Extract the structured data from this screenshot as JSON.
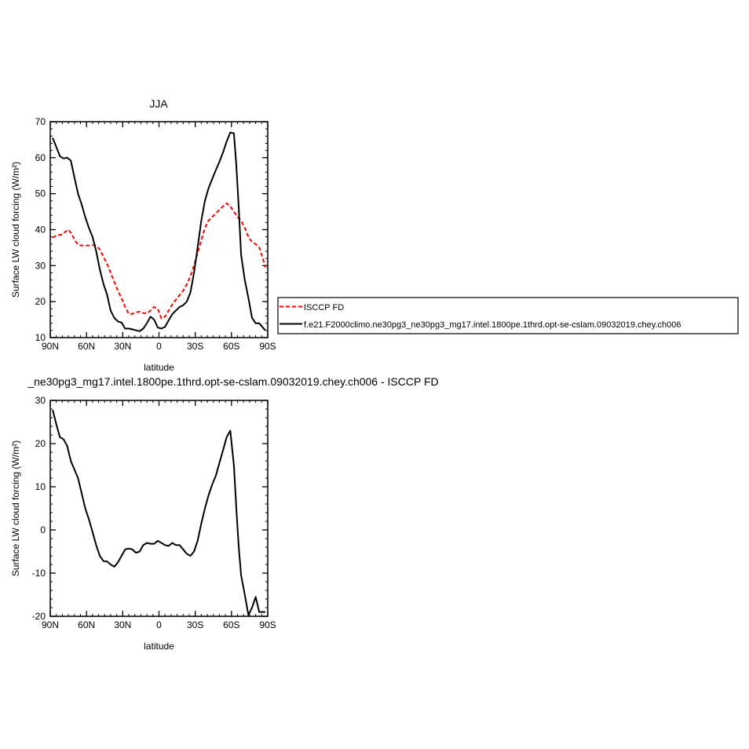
{
  "colors": {
    "obs": "#ff0000",
    "model": "#000000",
    "axis": "#000000"
  },
  "top_panel": {
    "title": "JJA",
    "legend": {
      "entries": [
        "ISCCP FD",
        "f.e21.F2000climo.ne30pg3_ne30pg3_mg17.intel.1800pe.1thrd.opt-se-cslam.09032019.chey.ch006"
      ]
    }
  },
  "bottom_panel": {
    "title": "_ne30pg3_mg17.intel.1800pe.1thrd.opt-se-cslam.09032019.chey.ch006 - ISCCP FD"
  },
  "chart_data": [
    {
      "type": "line",
      "title": "JJA",
      "xlabel": "latitude",
      "ylabel": "Surface LW cloud forcing (W/m²)",
      "xlim": [
        -90,
        90
      ],
      "ylim": [
        10,
        70
      ],
      "xticks": [
        {
          "value": -90,
          "label": "90N"
        },
        {
          "value": -60,
          "label": "60N"
        },
        {
          "value": -30,
          "label": "30N"
        },
        {
          "value": 0,
          "label": "0"
        },
        {
          "value": 30,
          "label": "30S"
        },
        {
          "value": 60,
          "label": "60S"
        },
        {
          "value": 90,
          "label": "90S"
        }
      ],
      "yticks": [
        10,
        20,
        30,
        40,
        50,
        60,
        70
      ],
      "legend_position": "right",
      "series": [
        {
          "name": "ISCCP FD",
          "color": "#ff0000",
          "dash": true,
          "x": [
            -88,
            -85,
            -83,
            -81,
            -78,
            -75,
            -72,
            -70,
            -67,
            -64,
            -61,
            -58,
            -55,
            -52,
            -49,
            -46,
            -43,
            -40,
            -37,
            -34,
            -31,
            -28,
            -25,
            -22,
            -19,
            -16,
            -13,
            -10,
            -7,
            -4,
            -1,
            2,
            5,
            8,
            11,
            14,
            17,
            20,
            23,
            26,
            29,
            32,
            35,
            38,
            41,
            44,
            47,
            50,
            53,
            56,
            59,
            62,
            65,
            68,
            71,
            74,
            77,
            80,
            83,
            86,
            88
          ],
          "y": [
            37.7,
            38.4,
            38.5,
            38.6,
            39.3,
            40.0,
            38.7,
            37.2,
            35.8,
            35.6,
            35.6,
            35.6,
            35.7,
            35.5,
            34.5,
            32.5,
            30.5,
            28.0,
            25.5,
            23.0,
            21.0,
            18.5,
            16.6,
            16.6,
            17.0,
            17.2,
            16.8,
            16.7,
            17.5,
            18.5,
            18.0,
            15.3,
            15.8,
            17.5,
            19.2,
            20.5,
            21.8,
            23.0,
            24.8,
            27.0,
            30.0,
            33.5,
            37.0,
            40.5,
            42.5,
            43.5,
            44.5,
            45.5,
            46.5,
            47.3,
            46.5,
            45.0,
            43.5,
            42.5,
            40.5,
            38.0,
            36.5,
            36.0,
            35.0,
            32.0,
            29.5
          ]
        },
        {
          "name": "f.e21.F2000climo.ne30pg3_ne30pg3_mg17.intel.1800pe.1thrd.opt-se-cslam.09032019.chey.ch006",
          "color": "#000000",
          "dash": false,
          "x": [
            -88,
            -85,
            -82,
            -79,
            -76,
            -73,
            -70,
            -67,
            -64,
            -61,
            -58,
            -55,
            -52,
            -49,
            -46,
            -43,
            -40,
            -37,
            -34,
            -31,
            -28,
            -25,
            -22,
            -19,
            -16,
            -13,
            -10,
            -7,
            -4,
            -1,
            2,
            5,
            8,
            11,
            14,
            17,
            20,
            23,
            26,
            29,
            32,
            35,
            38,
            41,
            44,
            47,
            50,
            53,
            56,
            59,
            62,
            64,
            66,
            68,
            71,
            74,
            77,
            80,
            83,
            86,
            88
          ],
          "y": [
            65.5,
            63.0,
            60.4,
            59.8,
            60.0,
            59.2,
            54.5,
            50.0,
            47.0,
            43.5,
            40.5,
            38.0,
            34.0,
            29.0,
            25.0,
            22.0,
            17.5,
            15.5,
            14.5,
            14.2,
            12.5,
            12.5,
            12.3,
            12.0,
            11.8,
            12.5,
            14.0,
            15.8,
            15.0,
            12.8,
            12.5,
            13.0,
            14.8,
            16.5,
            17.5,
            18.5,
            19.0,
            20.0,
            22.5,
            28.0,
            35.0,
            42.5,
            48.0,
            51.5,
            54.0,
            56.5,
            58.8,
            61.5,
            64.5,
            67.0,
            66.8,
            58.0,
            46.0,
            33.0,
            26.0,
            21.0,
            15.5,
            14.0,
            14.0,
            12.8,
            12.0
          ]
        }
      ]
    },
    {
      "type": "line",
      "title": "_ne30pg3_mg17.intel.1800pe.1thrd.opt-se-cslam.09032019.chey.ch006 - ISCCP FD",
      "xlabel": "latitude",
      "ylabel": "Surface LW cloud forcing (W/m²)",
      "xlim": [
        -90,
        90
      ],
      "ylim": [
        -20,
        30
      ],
      "xticks": [
        {
          "value": -90,
          "label": "90N"
        },
        {
          "value": -60,
          "label": "60N"
        },
        {
          "value": -30,
          "label": "30N"
        },
        {
          "value": 0,
          "label": "0"
        },
        {
          "value": 30,
          "label": "30S"
        },
        {
          "value": 60,
          "label": "60S"
        },
        {
          "value": 90,
          "label": "90S"
        }
      ],
      "yticks": [
        -20,
        -10,
        0,
        10,
        20,
        30
      ],
      "series": [
        {
          "name": "",
          "color": "#000000",
          "dash": false,
          "x": [
            -88,
            -85,
            -82,
            -79,
            -76,
            -73,
            -70,
            -67,
            -64,
            -61,
            -58,
            -55,
            -52,
            -49,
            -46,
            -43,
            -40,
            -37,
            -34,
            -31,
            -28,
            -25,
            -22,
            -19,
            -16,
            -13,
            -10,
            -7,
            -4,
            -1,
            2,
            5,
            8,
            11,
            14,
            17,
            20,
            23,
            26,
            29,
            32,
            35,
            38,
            41,
            44,
            47,
            50,
            53,
            56,
            59,
            62,
            64,
            66,
            68,
            71,
            74,
            77,
            80,
            83,
            86,
            88
          ],
          "y": [
            27.8,
            24.5,
            21.5,
            21.0,
            19.5,
            16.0,
            14.0,
            12.0,
            8.5,
            5.0,
            2.5,
            -0.5,
            -3.5,
            -6.0,
            -7.2,
            -7.3,
            -8.0,
            -8.5,
            -7.5,
            -6.0,
            -4.5,
            -4.3,
            -4.5,
            -5.3,
            -5.0,
            -3.5,
            -3.0,
            -3.2,
            -3.2,
            -2.5,
            -3.0,
            -3.5,
            -3.7,
            -3.0,
            -3.5,
            -3.5,
            -4.5,
            -5.5,
            -6.0,
            -5.0,
            -2.5,
            1.5,
            5.0,
            8.0,
            10.5,
            12.5,
            15.5,
            18.5,
            21.5,
            23.0,
            15.0,
            5.0,
            -4.0,
            -10.5,
            -15.0,
            -19.7,
            -18.0,
            -15.5,
            -19.0,
            -19.0,
            -19.0
          ]
        }
      ]
    }
  ]
}
